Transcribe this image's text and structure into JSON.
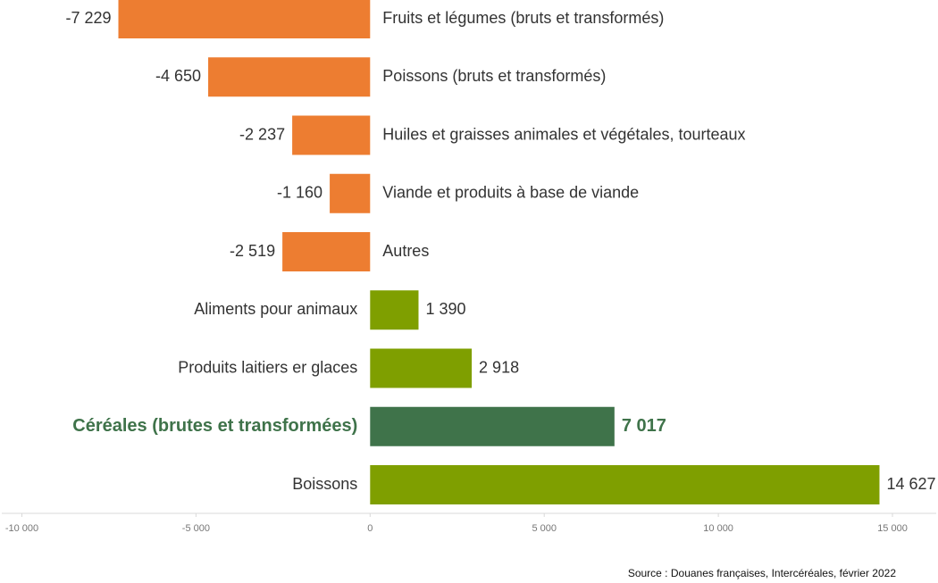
{
  "chart_data": {
    "type": "barh",
    "categories": [
      "Fruits et légumes (bruts et transformés)",
      "Poissons (bruts et transformés)",
      "Huiles et graisses animales et végétales, tourteaux",
      "Viande et produits à base de viande",
      "Autres",
      "Aliments pour animaux",
      "Produits laitiers er glaces",
      "Céréales (brutes et transformées)",
      "Boissons"
    ],
    "values": [
      -7229,
      -4650,
      -2237,
      -1160,
      -2519,
      1390,
      2918,
      7017,
      14627
    ],
    "value_labels": [
      "-7 229",
      "-4 650",
      "-2 237",
      "-1 160",
      "-2 519",
      "1 390",
      "2 918",
      "7 017",
      "14 627"
    ],
    "colors": [
      "#ED7D31",
      "#ED7D31",
      "#ED7D31",
      "#ED7D31",
      "#ED7D31",
      "#7F9F00",
      "#7F9F00",
      "#3F734A",
      "#7F9F00"
    ],
    "highlight": 7,
    "xlim": [
      -10500,
      16000
    ],
    "xticks": [
      {
        "value": -10000,
        "label": "-10 000"
      },
      {
        "value": -5000,
        "label": "-5 000"
      },
      0,
      {
        "value": 5000,
        "label": "5 000"
      },
      {
        "value": 10000,
        "label": "10 000"
      },
      {
        "value": 15000,
        "label": "15 000"
      }
    ],
    "source": "Source : Douanes françaises, Intercéréales, février 2022"
  }
}
